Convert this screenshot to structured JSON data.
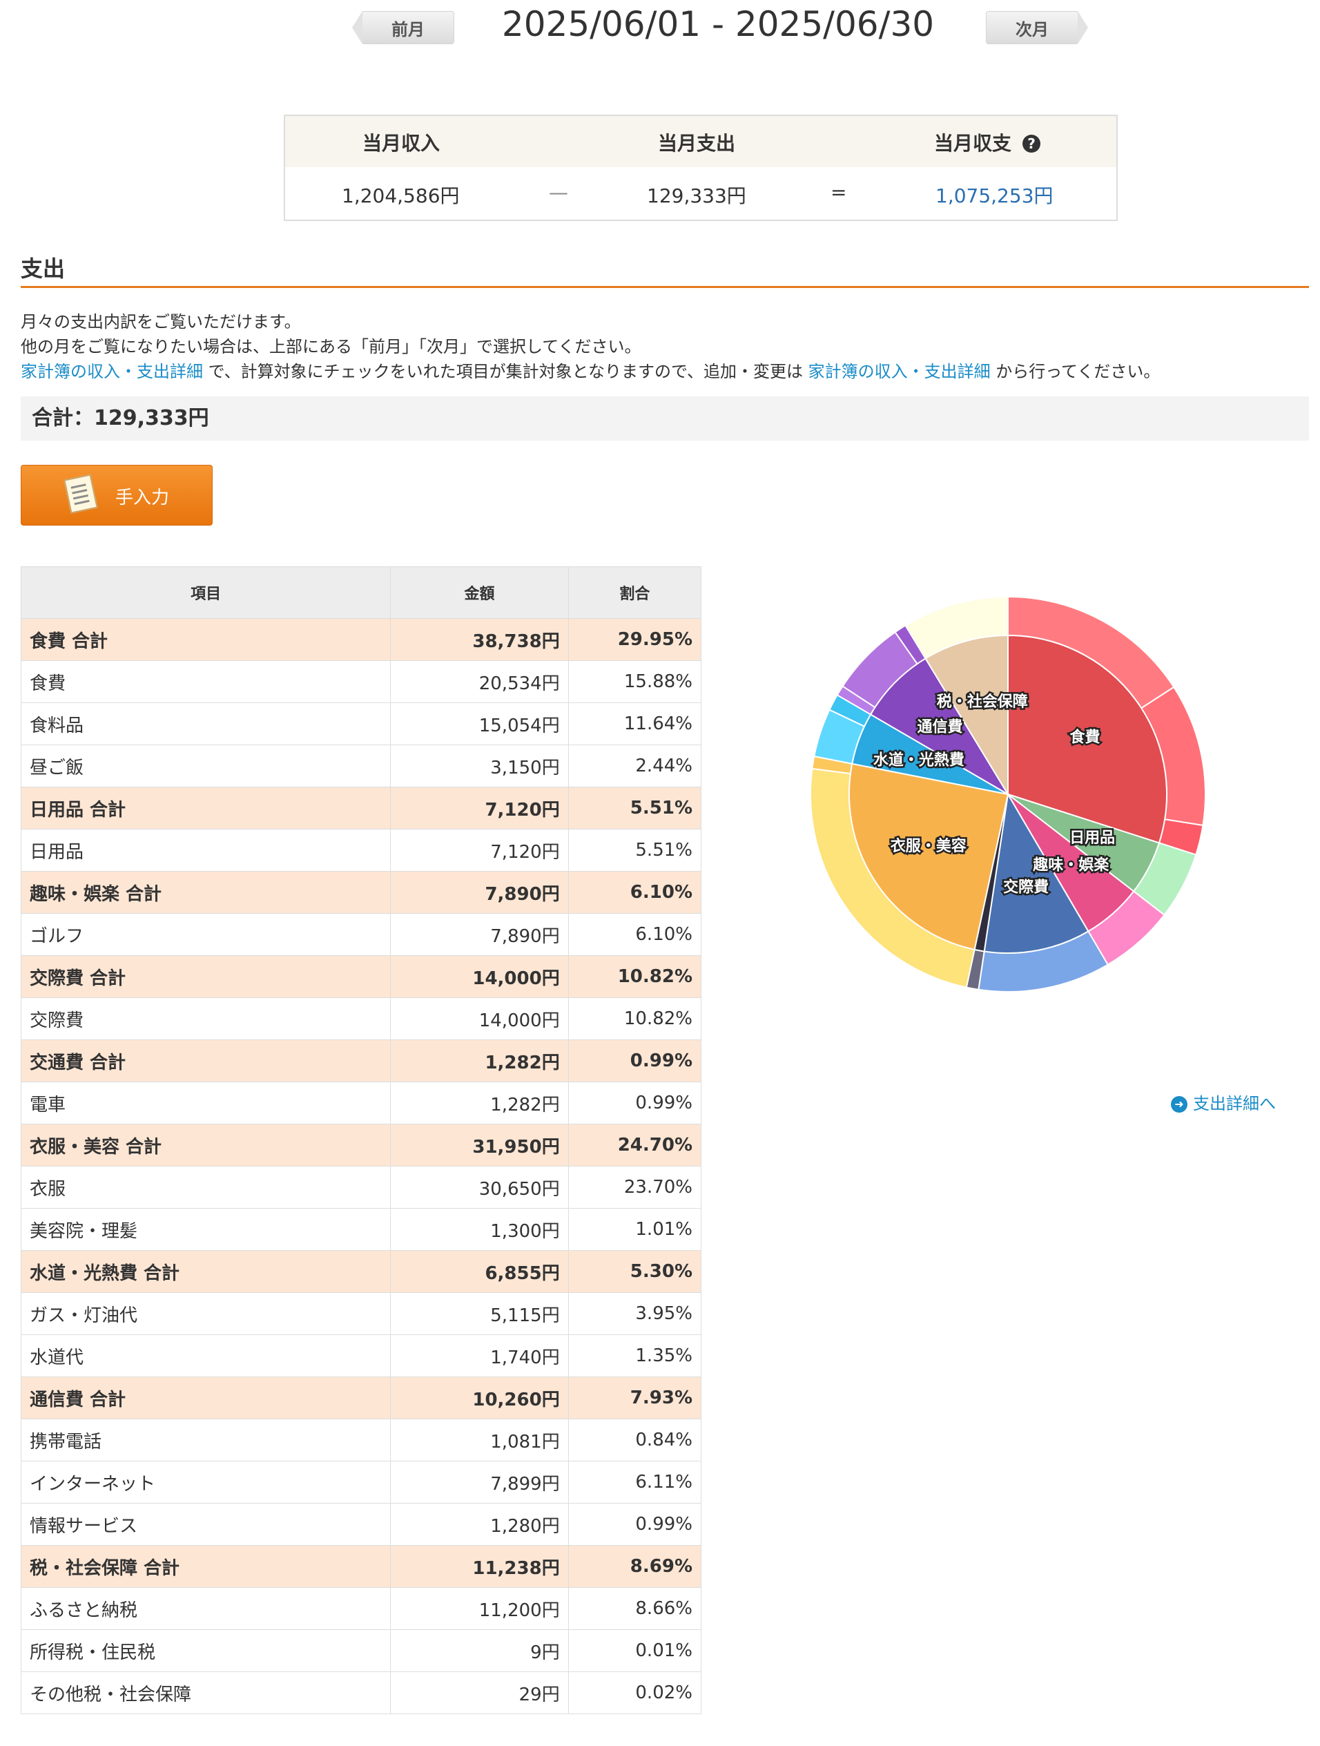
{
  "nav": {
    "prev_label": "前月",
    "next_label": "次月",
    "period": "2025/06/01 - 2025/06/30"
  },
  "summary": {
    "income_label": "当月収入",
    "expense_label": "当月支出",
    "balance_label": "当月収支",
    "income": "1,204,586円",
    "minus": "—",
    "expense": "129,333円",
    "equals": "=",
    "balance": "1,075,253円",
    "help_icon": "question-circle-icon"
  },
  "section": {
    "title": "支出",
    "desc_line1": "月々の支出内訳をご覧いただけます。",
    "desc_line2": "他の月をご覧になりたい場合は、上部にある「前月」「次月」で選択してください。",
    "desc_link1": "家計簿の収入・支出詳細",
    "desc_mid": " で、計算対象にチェックをいれた項目が集計対象となりますので、追加・変更は ",
    "desc_link2": "家計簿の収入・支出詳細",
    "desc_end": " から行ってください。",
    "total": "合計：129,333円",
    "manual_button": "手入力"
  },
  "table": {
    "headers": [
      "項目",
      "金額",
      "割合"
    ],
    "rows": [
      {
        "type": "total",
        "name": "食費 合計",
        "amount": "38,738円",
        "ratio": "29.95%"
      },
      {
        "type": "item",
        "name": "食費",
        "amount": "20,534円",
        "ratio": "15.88%"
      },
      {
        "type": "item",
        "name": "食料品",
        "amount": "15,054円",
        "ratio": "11.64%"
      },
      {
        "type": "item",
        "name": "昼ご飯",
        "amount": "3,150円",
        "ratio": "2.44%"
      },
      {
        "type": "total",
        "name": "日用品 合計",
        "amount": "7,120円",
        "ratio": "5.51%"
      },
      {
        "type": "item",
        "name": "日用品",
        "amount": "7,120円",
        "ratio": "5.51%"
      },
      {
        "type": "total",
        "name": "趣味・娯楽 合計",
        "amount": "7,890円",
        "ratio": "6.10%"
      },
      {
        "type": "item",
        "name": "ゴルフ",
        "amount": "7,890円",
        "ratio": "6.10%"
      },
      {
        "type": "total",
        "name": "交際費 合計",
        "amount": "14,000円",
        "ratio": "10.82%"
      },
      {
        "type": "item",
        "name": "交際費",
        "amount": "14,000円",
        "ratio": "10.82%"
      },
      {
        "type": "total",
        "name": "交通費 合計",
        "amount": "1,282円",
        "ratio": "0.99%"
      },
      {
        "type": "item",
        "name": "電車",
        "amount": "1,282円",
        "ratio": "0.99%"
      },
      {
        "type": "total",
        "name": "衣服・美容 合計",
        "amount": "31,950円",
        "ratio": "24.70%"
      },
      {
        "type": "item",
        "name": "衣服",
        "amount": "30,650円",
        "ratio": "23.70%"
      },
      {
        "type": "item",
        "name": "美容院・理髪",
        "amount": "1,300円",
        "ratio": "1.01%"
      },
      {
        "type": "total",
        "name": "水道・光熱費 合計",
        "amount": "6,855円",
        "ratio": "5.30%"
      },
      {
        "type": "item",
        "name": "ガス・灯油代",
        "amount": "5,115円",
        "ratio": "3.95%"
      },
      {
        "type": "item",
        "name": "水道代",
        "amount": "1,740円",
        "ratio": "1.35%"
      },
      {
        "type": "total",
        "name": "通信費 合計",
        "amount": "10,260円",
        "ratio": "7.93%"
      },
      {
        "type": "item",
        "name": "携帯電話",
        "amount": "1,081円",
        "ratio": "0.84%"
      },
      {
        "type": "item",
        "name": "インターネット",
        "amount": "7,899円",
        "ratio": "6.11%"
      },
      {
        "type": "item",
        "name": "情報サービス",
        "amount": "1,280円",
        "ratio": "0.99%"
      },
      {
        "type": "total",
        "name": "税・社会保障 合計",
        "amount": "11,238円",
        "ratio": "8.69%"
      },
      {
        "type": "item",
        "name": "ふるさと納税",
        "amount": "11,200円",
        "ratio": "8.66%"
      },
      {
        "type": "item",
        "name": "所得税・住民税",
        "amount": "9円",
        "ratio": "0.01%"
      },
      {
        "type": "item",
        "name": "その他税・社会保障",
        "amount": "29円",
        "ratio": "0.02%"
      }
    ]
  },
  "chart_data": {
    "type": "pie",
    "inner": [
      {
        "label": "食費",
        "value": 38738,
        "color": "#e04c50"
      },
      {
        "label": "日用品",
        "value": 7120,
        "color": "#86c08d"
      },
      {
        "label": "趣味・娯楽",
        "value": 7890,
        "color": "#e8508a"
      },
      {
        "label": "交際費",
        "value": 14000,
        "color": "#4a72b3"
      },
      {
        "label": "",
        "value": 1282,
        "color": "#2e2e3e"
      },
      {
        "label": "衣服・美容",
        "value": 31950,
        "color": "#f8b24c"
      },
      {
        "label": "水道・光熱費",
        "value": 6855,
        "color": "#2aa8e0"
      },
      {
        "label": "通信費",
        "value": 10260,
        "color": "#8548bf"
      },
      {
        "label": "税・社会保障",
        "value": 11238,
        "color": "#e6c8a6"
      }
    ],
    "outer": [
      {
        "value": 20534,
        "color": "#ff7b81"
      },
      {
        "value": 15054,
        "color": "#ff7078"
      },
      {
        "value": 3150,
        "color": "#fb5a66"
      },
      {
        "value": 7120,
        "color": "#b4f0c0"
      },
      {
        "value": 7890,
        "color": "#ff88c8"
      },
      {
        "value": 14000,
        "color": "#7aa6e8"
      },
      {
        "value": 1282,
        "color": "#6a6a80"
      },
      {
        "value": 30650,
        "color": "#fee27a"
      },
      {
        "value": 1300,
        "color": "#fcc85c"
      },
      {
        "value": 5115,
        "color": "#5fd8ff"
      },
      {
        "value": 1740,
        "color": "#3cc4f2"
      },
      {
        "value": 1081,
        "color": "#b97ee8"
      },
      {
        "value": 7899,
        "color": "#b274de"
      },
      {
        "value": 1280,
        "color": "#9a58cf"
      },
      {
        "value": 11238,
        "color": "#fffde2"
      }
    ]
  },
  "detail_link": "支出詳細へ"
}
